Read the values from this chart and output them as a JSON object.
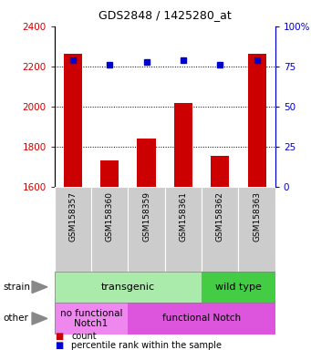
{
  "title": "GDS2848 / 1425280_at",
  "samples": [
    "GSM158357",
    "GSM158360",
    "GSM158359",
    "GSM158361",
    "GSM158362",
    "GSM158363"
  ],
  "counts": [
    2262,
    1735,
    1840,
    2020,
    1757,
    2262
  ],
  "percentiles": [
    79,
    76,
    78,
    79,
    76,
    79
  ],
  "ylim_left": [
    1600,
    2400
  ],
  "ylim_right": [
    0,
    100
  ],
  "yticks_left": [
    1600,
    1800,
    2000,
    2200,
    2400
  ],
  "yticks_right": [
    0,
    25,
    50,
    75,
    100
  ],
  "bar_color": "#cc0000",
  "dot_color": "#0000cc",
  "bar_width": 0.5,
  "strain_labels": [
    {
      "text": "transgenic",
      "cols": [
        0,
        1,
        2,
        3
      ],
      "color": "#aaeaaa"
    },
    {
      "text": "wild type",
      "cols": [
        4,
        5
      ],
      "color": "#44cc44"
    }
  ],
  "other_labels": [
    {
      "text": "no functional\nNotch1",
      "cols": [
        0,
        1
      ],
      "color": "#ee88ee"
    },
    {
      "text": "functional Notch",
      "cols": [
        2,
        3,
        4,
        5
      ],
      "color": "#dd55dd"
    }
  ],
  "tick_label_color_left": "#cc0000",
  "tick_label_color_right": "#0000cc",
  "bg_color": "#ffffff"
}
